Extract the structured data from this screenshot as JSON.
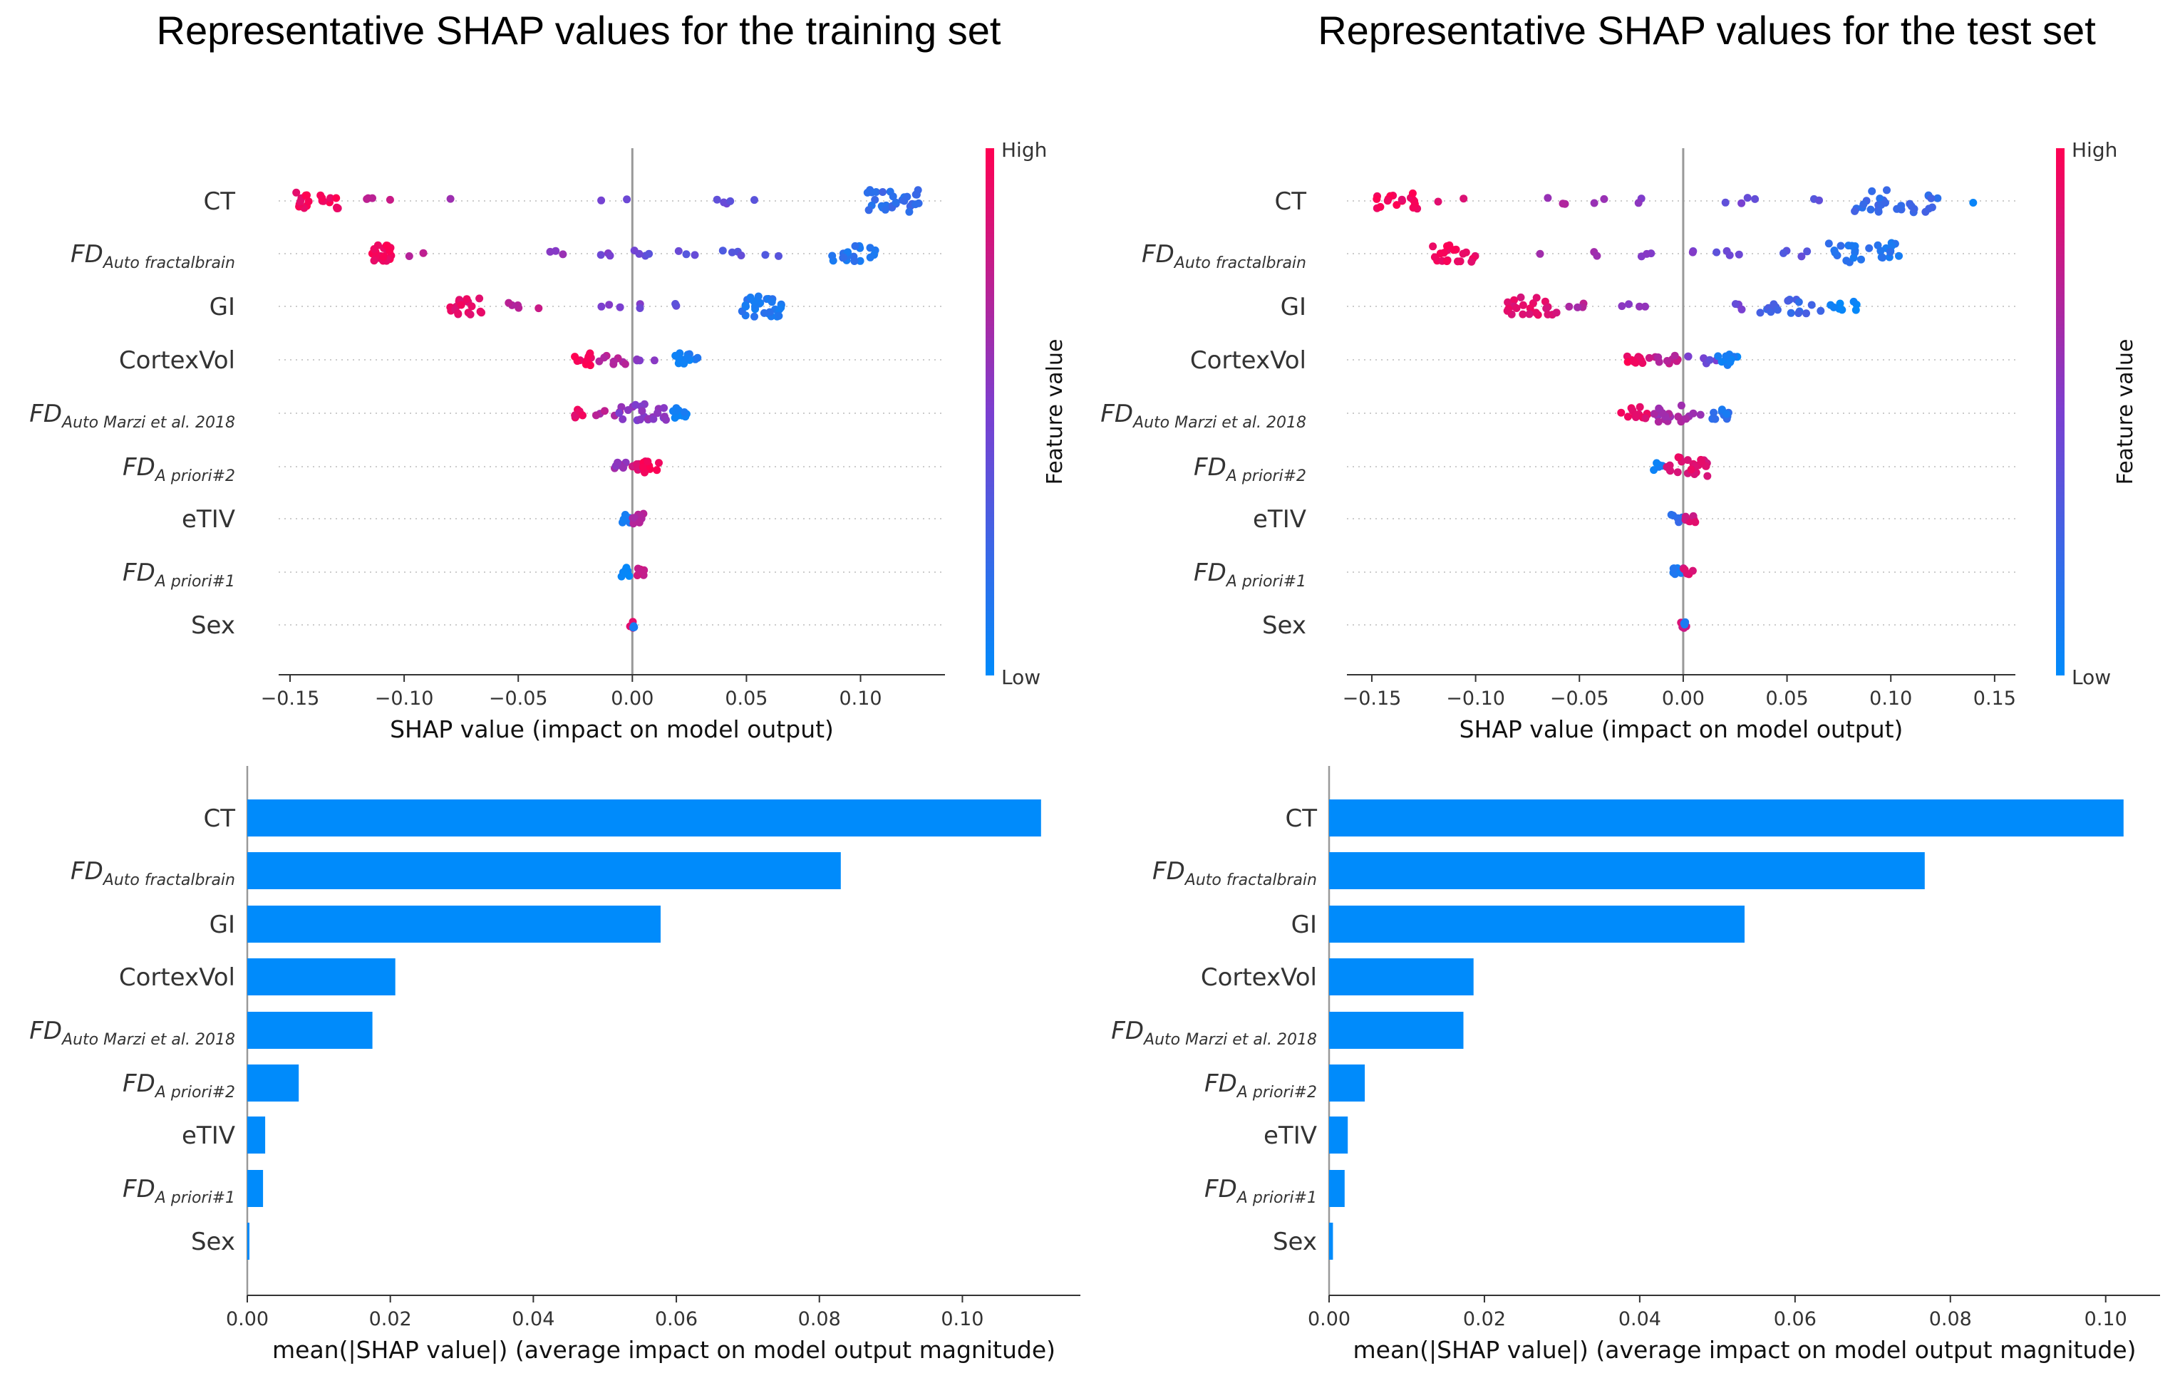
{
  "colors": {
    "low": "#008bfb",
    "high": "#ff0052",
    "bar": "#008bfb"
  },
  "colorbar": {
    "high_label": "High",
    "low_label": "Low",
    "title": "Feature value"
  },
  "features": [
    {
      "key": "CT",
      "main": "CT"
    },
    {
      "key": "fd_fractal",
      "main": "FD",
      "sub": "Auto fractalbrain",
      "italic": true
    },
    {
      "key": "GI",
      "main": "GI"
    },
    {
      "key": "CortexVol",
      "main": "CortexVol"
    },
    {
      "key": "fd_marzi",
      "main": "FD",
      "sub": "Auto Marzi et al. 2018",
      "italic": true
    },
    {
      "key": "fd_apriori2",
      "main": "FD",
      "sub": "A priori#2",
      "italic": true
    },
    {
      "key": "eTIV",
      "main": "eTIV"
    },
    {
      "key": "fd_apriori1",
      "main": "FD",
      "sub": "A priori#1",
      "italic": true
    },
    {
      "key": "Sex",
      "main": "Sex"
    }
  ],
  "chart_data": [
    {
      "type": "scatter",
      "subtype": "shap-beeswarm",
      "title": "Representative SHAP values for the training set",
      "xlabel": "SHAP value (impact on model output)",
      "xlim": [
        -0.155,
        0.137
      ],
      "xticks": [
        "−0.15",
        "−0.10",
        "−0.05",
        "0.00",
        "0.05",
        "0.10"
      ],
      "xtick_values": [
        -0.15,
        -0.1,
        -0.05,
        0.0,
        0.05,
        0.1
      ],
      "series": [
        {
          "feature": "CT",
          "clusters": [
            [
              -0.148,
              -0.128,
              0.95,
              20
            ],
            [
              -0.125,
              -0.105,
              0.78,
              4
            ],
            [
              -0.082,
              -0.078,
              0.6,
              1
            ],
            [
              -0.016,
              -0.012,
              0.5,
              1
            ],
            [
              -0.006,
              -0.002,
              0.45,
              1
            ],
            [
              0.035,
              0.045,
              0.4,
              4
            ],
            [
              0.052,
              0.056,
              0.35,
              1
            ],
            [
              0.103,
              0.127,
              0.2,
              30
            ]
          ]
        },
        {
          "feature": "FD Auto fractalbrain",
          "clusters": [
            [
              -0.114,
              -0.105,
              0.95,
              22
            ],
            [
              -0.098,
              -0.09,
              0.75,
              2
            ],
            [
              -0.04,
              -0.03,
              0.6,
              3
            ],
            [
              -0.018,
              0.0,
              0.5,
              3
            ],
            [
              0.0,
              0.014,
              0.42,
              4
            ],
            [
              0.018,
              0.03,
              0.4,
              3
            ],
            [
              0.038,
              0.052,
              0.35,
              4
            ],
            [
              0.058,
              0.066,
              0.3,
              2
            ],
            [
              0.085,
              0.107,
              0.15,
              20
            ]
          ]
        },
        {
          "feature": "GI",
          "clusters": [
            [
              -0.08,
              -0.066,
              0.9,
              20
            ],
            [
              -0.06,
              -0.038,
              0.75,
              5
            ],
            [
              -0.015,
              -0.005,
              0.55,
              3
            ],
            [
              0.0,
              0.008,
              0.5,
              2
            ],
            [
              0.018,
              0.03,
              0.4,
              2
            ],
            [
              0.048,
              0.066,
              0.12,
              28
            ]
          ]
        },
        {
          "feature": "CortexVol",
          "clusters": [
            [
              -0.026,
              -0.018,
              0.95,
              14
            ],
            [
              -0.018,
              -0.002,
              0.72,
              8
            ],
            [
              0.002,
              0.01,
              0.5,
              4
            ],
            [
              0.018,
              0.03,
              0.08,
              14
            ]
          ]
        },
        {
          "feature": "FD Auto Marzi et al. 2018",
          "clusters": [
            [
              -0.026,
              -0.02,
              0.92,
              8
            ],
            [
              -0.016,
              -0.004,
              0.72,
              5
            ],
            [
              -0.006,
              0.016,
              0.55,
              22
            ],
            [
              0.016,
              0.024,
              0.08,
              10
            ]
          ]
        },
        {
          "feature": "FD A priori#2",
          "clusters": [
            [
              -0.01,
              -0.002,
              0.6,
              8
            ],
            [
              0.0,
              0.006,
              0.85,
              10
            ],
            [
              0.004,
              0.012,
              0.98,
              12
            ]
          ]
        },
        {
          "feature": "eTIV",
          "clusters": [
            [
              -0.005,
              0.0,
              0.1,
              6
            ],
            [
              0.0,
              0.005,
              0.7,
              10
            ]
          ]
        },
        {
          "feature": "FD A priori#1",
          "clusters": [
            [
              -0.005,
              0.0,
              0.05,
              8
            ],
            [
              0.002,
              0.006,
              0.8,
              6
            ]
          ]
        },
        {
          "feature": "Sex",
          "clusters": [
            [
              -0.001,
              0.001,
              0.9,
              4
            ],
            [
              -0.001,
              0.001,
              0.1,
              3
            ]
          ]
        }
      ]
    },
    {
      "type": "scatter",
      "subtype": "shap-beeswarm",
      "title": "Representative SHAP values for the test set",
      "xlabel": "SHAP value (impact on model output)",
      "xlim": [
        -0.162,
        0.16
      ],
      "xticks": [
        "−0.15",
        "−0.10",
        "−0.05",
        "0.00",
        "0.05",
        "0.10",
        "0.15"
      ],
      "xtick_values": [
        -0.15,
        -0.1,
        -0.05,
        0.0,
        0.05,
        0.1,
        0.15
      ],
      "series": [
        {
          "feature": "CT",
          "clusters": [
            [
              -0.148,
              -0.128,
              0.95,
              18
            ],
            [
              -0.122,
              -0.105,
              0.85,
              2
            ],
            [
              -0.075,
              -0.055,
              0.65,
              3
            ],
            [
              -0.045,
              -0.03,
              0.6,
              2
            ],
            [
              -0.022,
              -0.015,
              0.55,
              2
            ],
            [
              0.02,
              0.035,
              0.45,
              4
            ],
            [
              0.06,
              0.072,
              0.35,
              2
            ],
            [
              0.08,
              0.125,
              0.22,
              30
            ],
            [
              0.136,
              0.14,
              0.05,
              1
            ]
          ]
        },
        {
          "feature": "FD Auto fractalbrain",
          "clusters": [
            [
              -0.122,
              -0.098,
              0.95,
              20
            ],
            [
              -0.07,
              -0.068,
              0.7,
              1
            ],
            [
              -0.045,
              -0.04,
              0.6,
              2
            ],
            [
              -0.022,
              -0.012,
              0.55,
              3
            ],
            [
              -0.002,
              0.006,
              0.5,
              2
            ],
            [
              0.015,
              0.03,
              0.42,
              4
            ],
            [
              0.04,
              0.06,
              0.35,
              4
            ],
            [
              0.07,
              0.105,
              0.15,
              28
            ]
          ]
        },
        {
          "feature": "GI",
          "clusters": [
            [
              -0.085,
              -0.06,
              0.88,
              22
            ],
            [
              -0.055,
              -0.045,
              0.7,
              4
            ],
            [
              -0.035,
              -0.018,
              0.6,
              4
            ],
            [
              0.02,
              0.032,
              0.45,
              3
            ],
            [
              0.036,
              0.068,
              0.25,
              18
            ],
            [
              0.068,
              0.084,
              0.05,
              8
            ]
          ]
        },
        {
          "feature": "CortexVol",
          "clusters": [
            [
              -0.028,
              -0.018,
              0.95,
              10
            ],
            [
              -0.018,
              -0.002,
              0.75,
              10
            ],
            [
              0.002,
              0.016,
              0.45,
              6
            ],
            [
              0.016,
              0.028,
              0.08,
              12
            ]
          ]
        },
        {
          "feature": "FD Auto Marzi et al. 2018",
          "clusters": [
            [
              -0.03,
              -0.014,
              0.9,
              14
            ],
            [
              -0.014,
              0.01,
              0.65,
              20
            ],
            [
              0.01,
              0.024,
              0.15,
              12
            ]
          ]
        },
        {
          "feature": "FD A priori#2",
          "clusters": [
            [
              -0.016,
              -0.008,
              0.1,
              5
            ],
            [
              -0.008,
              0.012,
              0.88,
              24
            ]
          ]
        },
        {
          "feature": "eTIV",
          "clusters": [
            [
              -0.006,
              0.0,
              0.2,
              6
            ],
            [
              0.0,
              0.006,
              0.85,
              8
            ]
          ]
        },
        {
          "feature": "FD A priori#1",
          "clusters": [
            [
              -0.006,
              0.0,
              0.1,
              8
            ],
            [
              0.0,
              0.006,
              0.85,
              6
            ]
          ]
        },
        {
          "feature": "Sex",
          "clusters": [
            [
              -0.002,
              0.002,
              0.8,
              4
            ],
            [
              -0.002,
              0.002,
              0.1,
              3
            ]
          ]
        }
      ]
    },
    {
      "type": "bar",
      "orientation": "horizontal",
      "xlabel": "mean(|SHAP value|) (average impact on model output magnitude)",
      "xlim": [
        0,
        0.1165
      ],
      "xticks": [
        "0.00",
        "0.02",
        "0.04",
        "0.06",
        "0.08",
        "0.10"
      ],
      "xtick_values": [
        0,
        0.02,
        0.04,
        0.06,
        0.08,
        0.1
      ],
      "categories": [
        "CT",
        "FD Auto fractalbrain",
        "GI",
        "CortexVol",
        "FD Auto Marzi et al. 2018",
        "FD A priori#2",
        "eTIV",
        "FD A priori#1",
        "Sex"
      ],
      "values": [
        0.111,
        0.083,
        0.0578,
        0.0207,
        0.0175,
        0.0072,
        0.0025,
        0.0022,
        0.0003
      ]
    },
    {
      "type": "bar",
      "orientation": "horizontal",
      "xlabel": "mean(|SHAP value|) (average impact on model output magnitude)",
      "xlim": [
        0,
        0.107
      ],
      "xticks": [
        "0.00",
        "0.02",
        "0.04",
        "0.06",
        "0.08",
        "0.10"
      ],
      "xtick_values": [
        0,
        0.02,
        0.04,
        0.06,
        0.08,
        0.1
      ],
      "categories": [
        "CT",
        "FD Auto fractalbrain",
        "GI",
        "CortexVol",
        "FD Auto Marzi et al. 2018",
        "FD A priori#2",
        "eTIV",
        "FD A priori#1",
        "Sex"
      ],
      "values": [
        0.1023,
        0.0767,
        0.0535,
        0.0186,
        0.0173,
        0.0046,
        0.0024,
        0.002,
        0.0005
      ]
    }
  ]
}
